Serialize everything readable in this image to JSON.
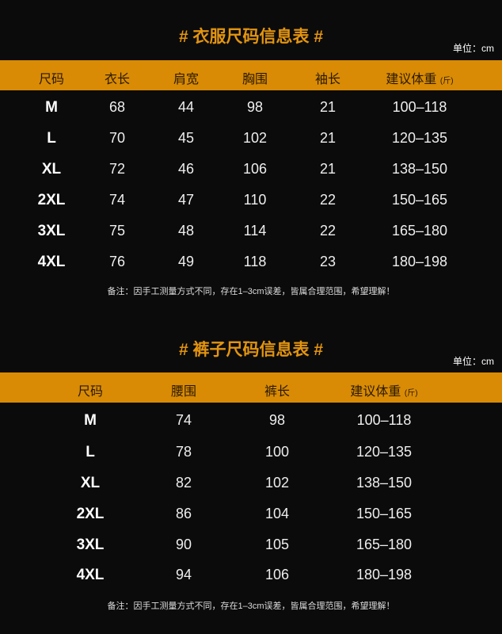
{
  "colors": {
    "background": "#0b0b0b",
    "accent": "#d98b05",
    "title": "#e39410"
  },
  "tables": [
    {
      "title": "# 衣服尺码信息表 #",
      "unit": "单位：cm",
      "headers": [
        "尺码",
        "衣长",
        "肩宽",
        "胸围",
        "袖长",
        "建议体重"
      ],
      "weight_unit": "(斤)",
      "rows": [
        [
          "M",
          "68",
          "44",
          "98",
          "21",
          "100–118"
        ],
        [
          "L",
          "70",
          "45",
          "102",
          "21",
          "120–135"
        ],
        [
          "XL",
          "72",
          "46",
          "106",
          "21",
          "138–150"
        ],
        [
          "2XL",
          "74",
          "47",
          "110",
          "22",
          "150–165"
        ],
        [
          "3XL",
          "75",
          "48",
          "114",
          "22",
          "165–180"
        ],
        [
          "4XL",
          "76",
          "49",
          "118",
          "23",
          "180–198"
        ]
      ],
      "note": "备注：因手工测量方式不同，存在1–3cm误差，皆属合理范围，希望理解！"
    },
    {
      "title": "# 裤子尺码信息表 #",
      "unit": "单位：cm",
      "headers": [
        "尺码",
        "腰围",
        "裤长",
        "建议体重"
      ],
      "weight_unit": "(斤)",
      "rows": [
        [
          "M",
          "74",
          "98",
          "100–118"
        ],
        [
          "L",
          "78",
          "100",
          "120–135"
        ],
        [
          "XL",
          "82",
          "102",
          "138–150"
        ],
        [
          "2XL",
          "86",
          "104",
          "150–165"
        ],
        [
          "3XL",
          "90",
          "105",
          "165–180"
        ],
        [
          "4XL",
          "94",
          "106",
          "180–198"
        ]
      ],
      "note": "备注：因手工测量方式不同，存在1–3cm误差，皆属合理范围，希望理解！"
    }
  ]
}
